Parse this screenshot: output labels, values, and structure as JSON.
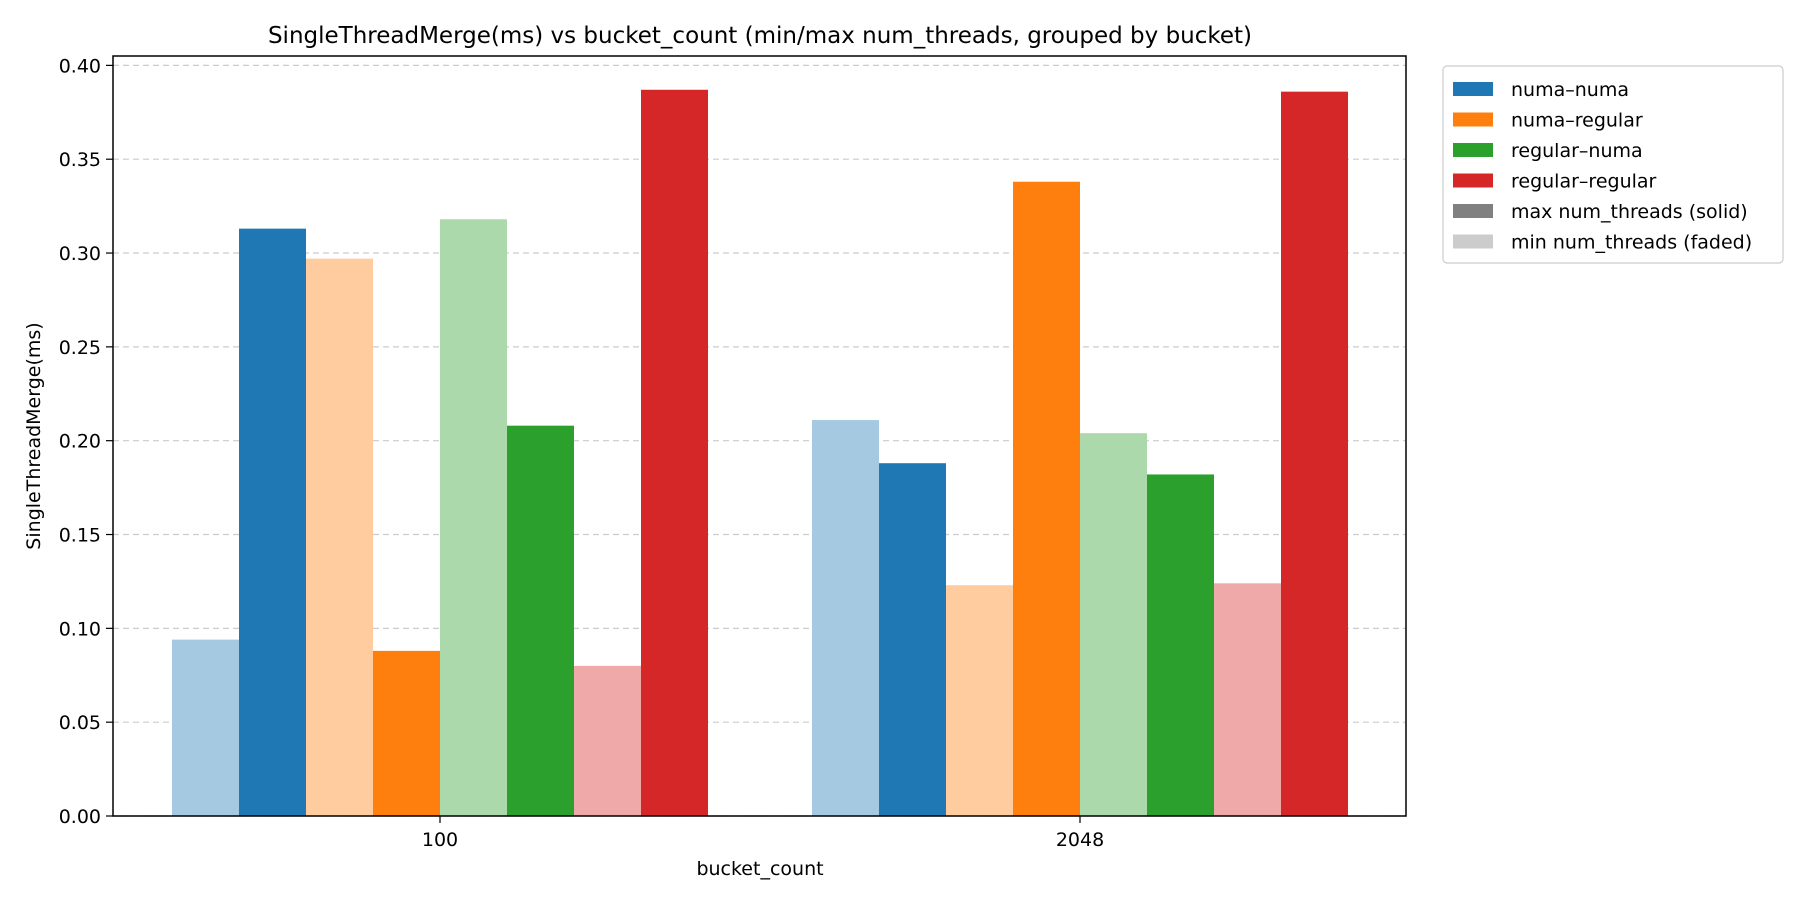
{
  "chart_data": {
    "type": "bar",
    "title": "SingleThreadMerge(ms) vs bucket_count (min/max num_threads, grouped by bucket)",
    "xlabel": "bucket_count",
    "ylabel": "SingleThreadMerge(ms)",
    "categories": [
      "100",
      "2048"
    ],
    "ylim": [
      0,
      0.405
    ],
    "yticks": [
      "0.00",
      "0.05",
      "0.10",
      "0.15",
      "0.20",
      "0.25",
      "0.30",
      "0.35",
      "0.40"
    ],
    "grid": "horizontal-dashed",
    "legend_position": "outside-top-right",
    "series": [
      {
        "name": "numa–numa",
        "color": "#1f77b4",
        "min_threads": [
          0.094,
          0.211
        ],
        "max_threads": [
          0.313,
          0.188
        ]
      },
      {
        "name": "numa–regular",
        "color": "#ff7f0e",
        "min_threads": [
          0.297,
          0.123
        ],
        "max_threads": [
          0.088,
          0.338
        ]
      },
      {
        "name": "regular–numa",
        "color": "#2ca02c",
        "min_threads": [
          0.318,
          0.204
        ],
        "max_threads": [
          0.208,
          0.182
        ]
      },
      {
        "name": "regular–regular",
        "color": "#d62728",
        "min_threads": [
          0.08,
          0.124
        ],
        "max_threads": [
          0.387,
          0.386
        ]
      }
    ],
    "legend_extra": [
      {
        "label": "max num_threads (solid)",
        "color": "#808080"
      },
      {
        "label": "min num_threads (faded)",
        "color": "#cccccc"
      }
    ]
  }
}
